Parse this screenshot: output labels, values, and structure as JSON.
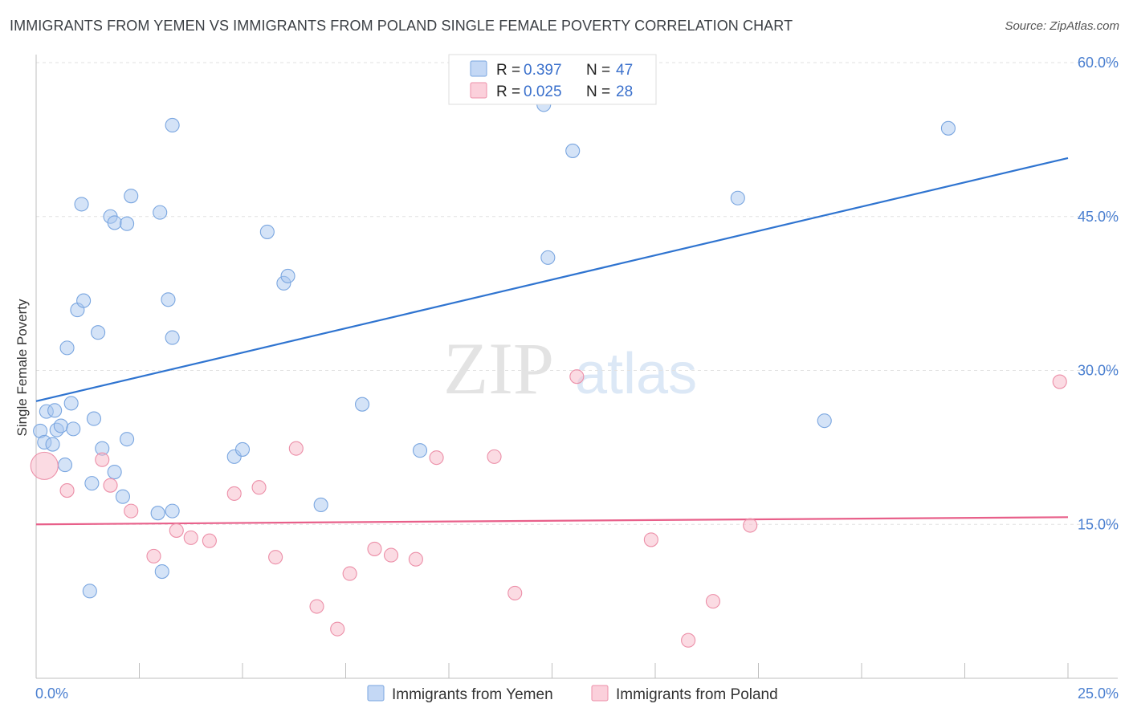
{
  "header": {
    "title": "IMMIGRANTS FROM YEMEN VS IMMIGRANTS FROM POLAND SINGLE FEMALE POVERTY CORRELATION CHART",
    "source": "Source: ZipAtlas.com"
  },
  "watermark": {
    "zip": "ZIP",
    "atlas": "atlas"
  },
  "legend": {
    "r_label": "R =",
    "n_label": "N =",
    "series": [
      {
        "name": "Immigrants from Yemen",
        "r": "0.397",
        "n": "47",
        "color": "#a9c7f0",
        "stroke": "#7aa6e0"
      },
      {
        "name": "Immigrants from Poland",
        "r": "0.025",
        "n": "28",
        "color": "#f7b8c8",
        "stroke": "#ec8fa8"
      }
    ]
  },
  "chart_data": {
    "type": "scatter",
    "title": "IMMIGRANTS FROM YEMEN VS IMMIGRANTS FROM POLAND SINGLE FEMALE POVERTY CORRELATION CHART",
    "xlabel": "",
    "ylabel": "Single Female Poverty",
    "xlim": [
      0,
      25
    ],
    "ylim": [
      0,
      60
    ],
    "x_tick_labels": [
      "0.0%",
      "25.0%"
    ],
    "y_ticks": [
      15,
      30,
      45,
      60
    ],
    "y_tick_labels": [
      "15.0%",
      "30.0%",
      "45.0%",
      "60.0%"
    ],
    "series": [
      {
        "name": "Immigrants from Yemen",
        "color": "#a9c7f0",
        "stroke": "#7aa6e0",
        "trend": {
          "color": "#2f74d0",
          "x": [
            0,
            25
          ],
          "y": [
            27.0,
            50.7
          ]
        },
        "points": [
          {
            "x": 0.1,
            "y": 24.1
          },
          {
            "x": 0.2,
            "y": 23.0
          },
          {
            "x": 0.4,
            "y": 22.8
          },
          {
            "x": 0.25,
            "y": 26.0
          },
          {
            "x": 0.45,
            "y": 26.1
          },
          {
            "x": 0.5,
            "y": 24.2
          },
          {
            "x": 0.6,
            "y": 24.6
          },
          {
            "x": 0.7,
            "y": 20.8
          },
          {
            "x": 0.75,
            "y": 32.2
          },
          {
            "x": 0.85,
            "y": 26.8
          },
          {
            "x": 0.9,
            "y": 24.3
          },
          {
            "x": 1.0,
            "y": 35.9
          },
          {
            "x": 1.1,
            "y": 46.2
          },
          {
            "x": 1.15,
            "y": 36.8
          },
          {
            "x": 1.3,
            "y": 8.5
          },
          {
            "x": 1.35,
            "y": 19.0
          },
          {
            "x": 1.4,
            "y": 25.3
          },
          {
            "x": 1.5,
            "y": 33.7
          },
          {
            "x": 1.6,
            "y": 22.4
          },
          {
            "x": 1.8,
            "y": 45.0
          },
          {
            "x": 1.9,
            "y": 44.4
          },
          {
            "x": 1.9,
            "y": 20.1
          },
          {
            "x": 2.1,
            "y": 17.7
          },
          {
            "x": 2.2,
            "y": 44.3
          },
          {
            "x": 2.2,
            "y": 23.3
          },
          {
            "x": 2.3,
            "y": 47.0
          },
          {
            "x": 2.95,
            "y": 16.1
          },
          {
            "x": 3.0,
            "y": 45.4
          },
          {
            "x": 3.05,
            "y": 10.4
          },
          {
            "x": 3.2,
            "y": 36.9
          },
          {
            "x": 3.3,
            "y": 33.2
          },
          {
            "x": 3.3,
            "y": 16.3
          },
          {
            "x": 3.3,
            "y": 53.9
          },
          {
            "x": 4.8,
            "y": 21.6
          },
          {
            "x": 5.0,
            "y": 22.3
          },
          {
            "x": 5.6,
            "y": 43.5
          },
          {
            "x": 6.0,
            "y": 38.5
          },
          {
            "x": 6.1,
            "y": 39.2
          },
          {
            "x": 6.9,
            "y": 16.9
          },
          {
            "x": 7.9,
            "y": 26.7
          },
          {
            "x": 9.3,
            "y": 22.2
          },
          {
            "x": 12.3,
            "y": 55.9
          },
          {
            "x": 12.4,
            "y": 41.0
          },
          {
            "x": 13.0,
            "y": 51.4
          },
          {
            "x": 17.0,
            "y": 46.8
          },
          {
            "x": 19.1,
            "y": 25.1
          },
          {
            "x": 22.1,
            "y": 53.6
          }
        ]
      },
      {
        "name": "Immigrants from Poland",
        "color": "#f7b8c8",
        "stroke": "#ec8fa8",
        "trend": {
          "color": "#e8608a",
          "x": [
            0,
            25
          ],
          "y": [
            15.0,
            15.7
          ]
        },
        "points": [
          {
            "x": 0.2,
            "y": 20.7,
            "big": true
          },
          {
            "x": 0.75,
            "y": 18.3
          },
          {
            "x": 1.6,
            "y": 21.3
          },
          {
            "x": 1.8,
            "y": 18.8
          },
          {
            "x": 2.3,
            "y": 16.3
          },
          {
            "x": 2.85,
            "y": 11.9
          },
          {
            "x": 3.4,
            "y": 14.4
          },
          {
            "x": 3.75,
            "y": 13.7
          },
          {
            "x": 4.2,
            "y": 13.4
          },
          {
            "x": 4.8,
            "y": 18.0
          },
          {
            "x": 5.4,
            "y": 18.6
          },
          {
            "x": 5.8,
            "y": 11.8
          },
          {
            "x": 6.3,
            "y": 22.4
          },
          {
            "x": 6.8,
            "y": 7.0
          },
          {
            "x": 7.3,
            "y": 4.8
          },
          {
            "x": 7.6,
            "y": 10.2
          },
          {
            "x": 8.2,
            "y": 12.6
          },
          {
            "x": 8.6,
            "y": 12.0
          },
          {
            "x": 9.2,
            "y": 11.6
          },
          {
            "x": 9.7,
            "y": 21.5
          },
          {
            "x": 11.1,
            "y": 21.6
          },
          {
            "x": 11.6,
            "y": 8.3
          },
          {
            "x": 13.1,
            "y": 29.4
          },
          {
            "x": 14.9,
            "y": 13.5
          },
          {
            "x": 15.8,
            "y": 3.7
          },
          {
            "x": 16.4,
            "y": 7.5
          },
          {
            "x": 17.3,
            "y": 14.9
          },
          {
            "x": 24.8,
            "y": 28.9
          }
        ]
      }
    ]
  }
}
